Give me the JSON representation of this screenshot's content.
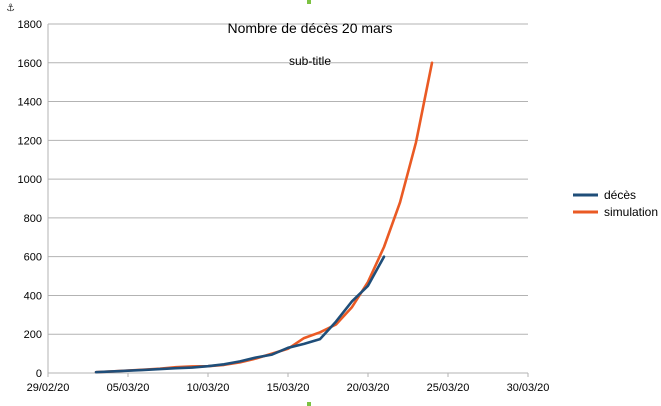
{
  "chart_data": {
    "type": "line",
    "title": "Nombre de décès 20 mars",
    "subtitle": "sub-title",
    "xlabel": "",
    "ylabel": "",
    "x_ticks": [
      "29/02/20",
      "05/03/20",
      "10/03/20",
      "15/03/20",
      "20/03/20",
      "25/03/20",
      "30/03/20"
    ],
    "xlim": [
      0,
      30
    ],
    "ylim": [
      0,
      1800
    ],
    "y_ticks": [
      0,
      200,
      400,
      600,
      800,
      1000,
      1200,
      1400,
      1600,
      1800
    ],
    "grid": "horizontal",
    "legend_position": "right",
    "series": [
      {
        "name": "décès",
        "color": "#1f4e79",
        "x": [
          3,
          4,
          5,
          6,
          7,
          8,
          9,
          10,
          11,
          12,
          13,
          14,
          15,
          16,
          17,
          18,
          19,
          20,
          21
        ],
        "values": [
          4,
          8,
          12,
          16,
          20,
          25,
          28,
          35,
          45,
          60,
          80,
          95,
          130,
          150,
          175,
          265,
          370,
          450,
          600
        ]
      },
      {
        "name": "simulation",
        "color": "#ea5a24",
        "x": [
          3,
          4,
          5,
          6,
          7,
          8,
          9,
          10,
          11,
          12,
          13,
          14,
          15,
          16,
          17,
          18,
          19,
          20,
          21,
          22,
          23,
          24
        ],
        "values": [
          4,
          8,
          13,
          17,
          22,
          30,
          34,
          35,
          42,
          55,
          75,
          100,
          125,
          180,
          210,
          250,
          340,
          470,
          650,
          880,
          1190,
          1600
        ]
      }
    ]
  }
}
